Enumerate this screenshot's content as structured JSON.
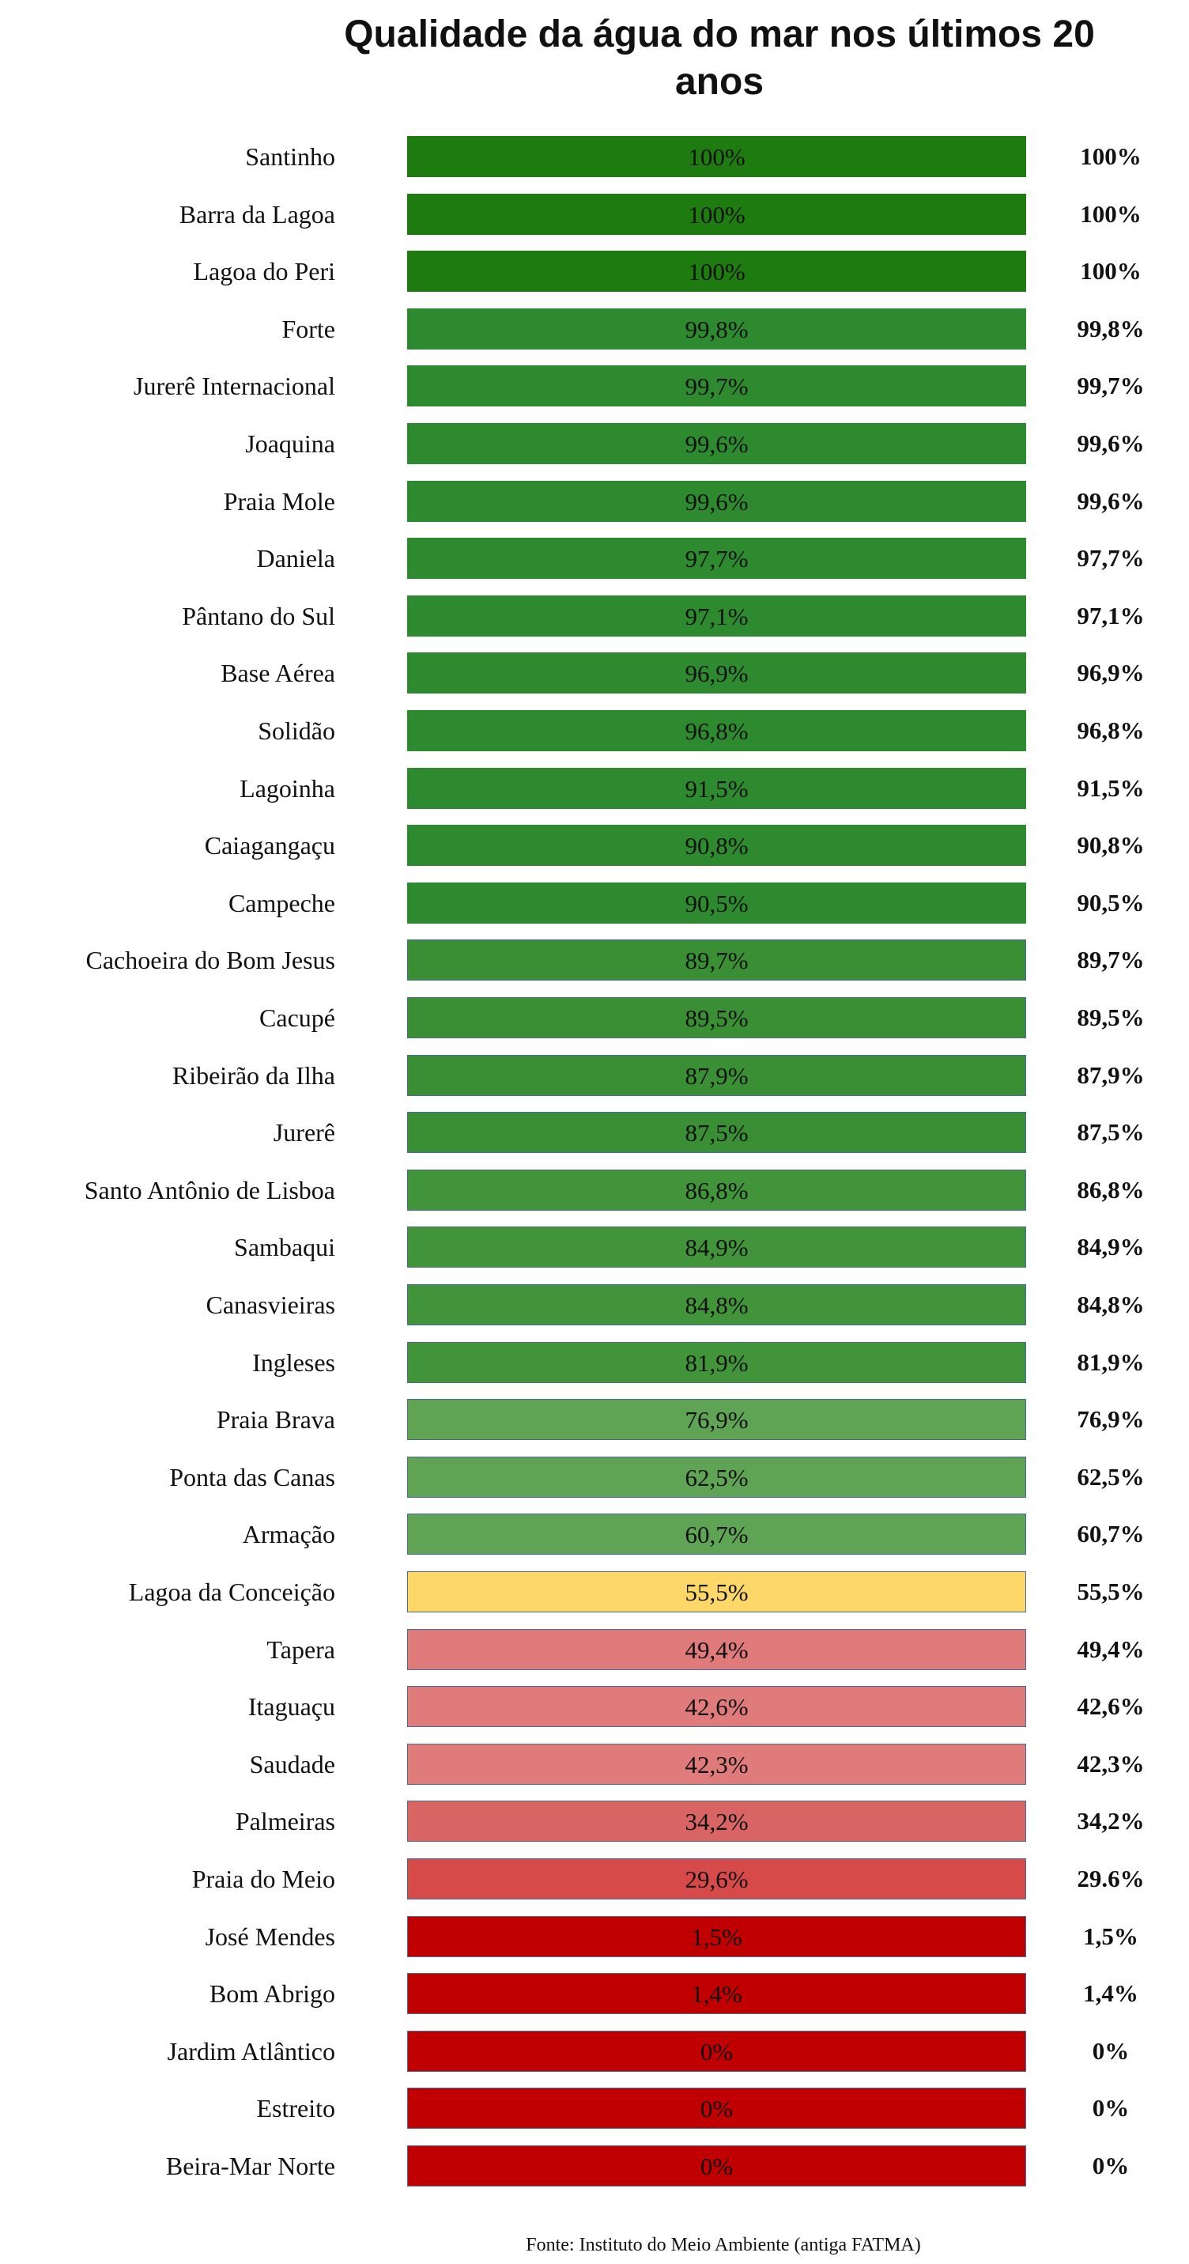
{
  "title": "Qualidade da água do mar nos últimos 20 anos",
  "rows": [
    {
      "name": "Santinho",
      "bar_label": "100%",
      "label": "100%",
      "color": "#1e7b10"
    },
    {
      "name": "Barra da Lagoa",
      "bar_label": "100%",
      "label": "100%",
      "color": "#1e7b10"
    },
    {
      "name": "Lagoa do Peri",
      "bar_label": "100%",
      "label": "100%",
      "color": "#1e7b10"
    },
    {
      "name": "Forte",
      "bar_label": "99,8%",
      "label": "99,8%",
      "color": "#2e8a2e"
    },
    {
      "name": "Jurerê Internacional",
      "bar_label": "99,7%",
      "label": "99,7%",
      "color": "#2e8a2e"
    },
    {
      "name": "Joaquina",
      "bar_label": "99,6%",
      "label": "99,6%",
      "color": "#2e8a2e"
    },
    {
      "name": "Praia Mole",
      "bar_label": "99,6%",
      "label": "99,6%",
      "color": "#2e8a2e"
    },
    {
      "name": "Daniela",
      "bar_label": "97,7%",
      "label": "97,7%",
      "color": "#2e8a2e"
    },
    {
      "name": "Pântano do Sul",
      "bar_label": "97,1%",
      "label": "97,1%",
      "color": "#2e8a2e"
    },
    {
      "name": "Base Aérea",
      "bar_label": "96,9%",
      "label": "96,9%",
      "color": "#2e8a2e"
    },
    {
      "name": "Solidão",
      "bar_label": "96,8%",
      "label": "96,8%",
      "color": "#2e8a2e"
    },
    {
      "name": "Lagoinha",
      "bar_label": "91,5%",
      "label": "91,5%",
      "color": "#2e8a2e"
    },
    {
      "name": "Caiagangaçu",
      "bar_label": "90,8%",
      "label": "90,8%",
      "color": "#2e8a2e"
    },
    {
      "name": "Campeche",
      "bar_label": "90,5%",
      "label": "90,5%",
      "color": "#2e8a2e"
    },
    {
      "name": "Cachoeira do Bom Jesus",
      "bar_label": "89,7%",
      "label": "89,7%",
      "color": "#3a8f35"
    },
    {
      "name": "Cacupé",
      "bar_label": "89,5%",
      "label": "89,5%",
      "color": "#3a8f35"
    },
    {
      "name": "Ribeirão da Ilha",
      "bar_label": "87,9%",
      "label": "87,9%",
      "color": "#3a8f35"
    },
    {
      "name": "Jurerê",
      "bar_label": "87,5%",
      "label": "87,5%",
      "color": "#3a8f35"
    },
    {
      "name": "Santo Antônio de Lisboa",
      "bar_label": "86,8%",
      "label": "86,8%",
      "color": "#42943b"
    },
    {
      "name": "Sambaqui",
      "bar_label": "84,9%",
      "label": "84,9%",
      "color": "#42943b"
    },
    {
      "name": "Canasvieiras",
      "bar_label": "84,8%",
      "label": "84,8%",
      "color": "#42943b"
    },
    {
      "name": "Ingleses",
      "bar_label": "81,9%",
      "label": "81,9%",
      "color": "#42943b"
    },
    {
      "name": "Praia Brava",
      "bar_label": "76,9%",
      "label": "76,9%",
      "color": "#5fa355"
    },
    {
      "name": "Ponta das Canas",
      "bar_label": "62,5%",
      "label": "62,5%",
      "color": "#5fa355"
    },
    {
      "name": "Armação",
      "bar_label": "60,7%",
      "label": "60,7%",
      "color": "#5fa355"
    },
    {
      "name": "Lagoa da Conceição",
      "bar_label": "55,5%",
      "label": "55,5%",
      "color": "#fdd868"
    },
    {
      "name": "Tapera",
      "bar_label": "49,4%",
      "label": "49,4%",
      "color": "#e07b7b"
    },
    {
      "name": "Itaguaçu",
      "bar_label": "42,6%",
      "label": "42,6%",
      "color": "#e07b7b"
    },
    {
      "name": "Saudade",
      "bar_label": "42,3%",
      "label": "42,3%",
      "color": "#e07b7b"
    },
    {
      "name": "Palmeiras",
      "bar_label": "34,2%",
      "label": "34,2%",
      "color": "#d96464"
    },
    {
      "name": "Praia do Meio",
      "bar_label": "29,6%",
      "label": "29.6%",
      "color": "#d64a4a"
    },
    {
      "name": "José Mendes",
      "bar_label": "1,5%",
      "label": "1,5%",
      "color": "#c00000"
    },
    {
      "name": "Bom Abrigo",
      "bar_label": "1,4%",
      "label": "1,4%",
      "color": "#c00000"
    },
    {
      "name": "Jardim Atlântico",
      "bar_label": "0%",
      "label": "0%",
      "color": "#c00000"
    },
    {
      "name": "Estreito",
      "bar_label": "0%",
      "label": "0%",
      "color": "#c00000"
    },
    {
      "name": "Beira-Mar Norte",
      "bar_label": "0%",
      "label": "0%",
      "color": "#c00000"
    }
  ],
  "source": "Fonte: Instituto do Meio Ambiente (antiga FATMA)"
}
